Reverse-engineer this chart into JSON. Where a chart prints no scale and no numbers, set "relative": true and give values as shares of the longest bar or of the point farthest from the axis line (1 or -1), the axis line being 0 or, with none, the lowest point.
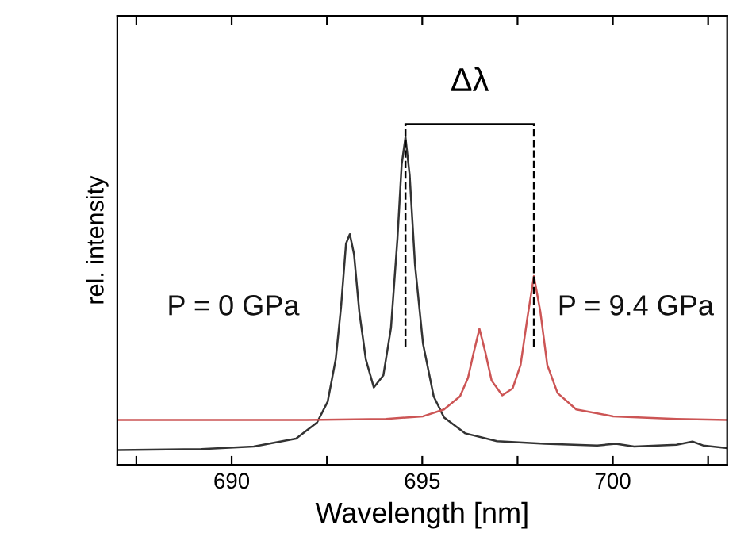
{
  "chart_data": {
    "type": "line",
    "relative": true,
    "xlabel": "Wavelength [nm]",
    "ylabel": "rel. intensity",
    "xlim": [
      687,
      703
    ],
    "xticks": [
      {
        "value": 687.5,
        "label": null
      },
      690,
      {
        "value": 692.5,
        "label": null
      },
      695,
      {
        "value": 697.5,
        "label": null
      },
      700,
      {
        "value": 702.5,
        "label": null
      }
    ],
    "grid": false,
    "legend": false,
    "marker": "none",
    "line_style": "solid",
    "annotations": [
      "Δλ"
    ],
    "ref_lines": [
      {
        "axis": "x",
        "value": 694.56,
        "line_style": "dashed",
        "color": "#000000"
      },
      {
        "axis": "x",
        "value": 697.93,
        "line_style": "dashed",
        "color": "#000000"
      }
    ],
    "series": [
      {
        "name": "P = 0 GPa",
        "color": "#333333",
        "x": [
          687.0,
          689.19,
          690.58,
          691.69,
          692.24,
          692.52,
          692.73,
          692.87,
          693.0,
          693.1,
          693.21,
          693.35,
          693.52,
          693.73,
          693.98,
          694.18,
          694.35,
          694.46,
          694.56,
          694.67,
          694.81,
          695.02,
          695.3,
          695.57,
          696.13,
          696.96,
          698.21,
          699.59,
          700.08,
          700.56,
          701.67,
          702.09,
          702.37,
          703.0
        ],
        "values": [
          0.045,
          0.048,
          0.056,
          0.08,
          0.129,
          0.193,
          0.322,
          0.482,
          0.675,
          0.704,
          0.643,
          0.466,
          0.322,
          0.236,
          0.273,
          0.418,
          0.691,
          0.916,
          1.0,
          0.884,
          0.611,
          0.37,
          0.209,
          0.145,
          0.096,
          0.072,
          0.064,
          0.059,
          0.064,
          0.056,
          0.061,
          0.071,
          0.059,
          0.051
        ]
      },
      {
        "name": "P = 9.4 GPa",
        "color": "#cc5555",
        "x": [
          687.0,
          691.97,
          694.05,
          695.02,
          695.57,
          695.99,
          696.2,
          696.34,
          696.5,
          696.65,
          696.82,
          697.1,
          697.37,
          697.58,
          697.76,
          697.93,
          698.1,
          698.28,
          698.55,
          699.04,
          700.01,
          701.67,
          703.0
        ],
        "values": [
          0.137,
          0.137,
          0.14,
          0.148,
          0.169,
          0.209,
          0.265,
          0.338,
          0.415,
          0.346,
          0.257,
          0.212,
          0.233,
          0.305,
          0.45,
          0.576,
          0.466,
          0.305,
          0.219,
          0.169,
          0.148,
          0.14,
          0.137
        ]
      }
    ]
  }
}
